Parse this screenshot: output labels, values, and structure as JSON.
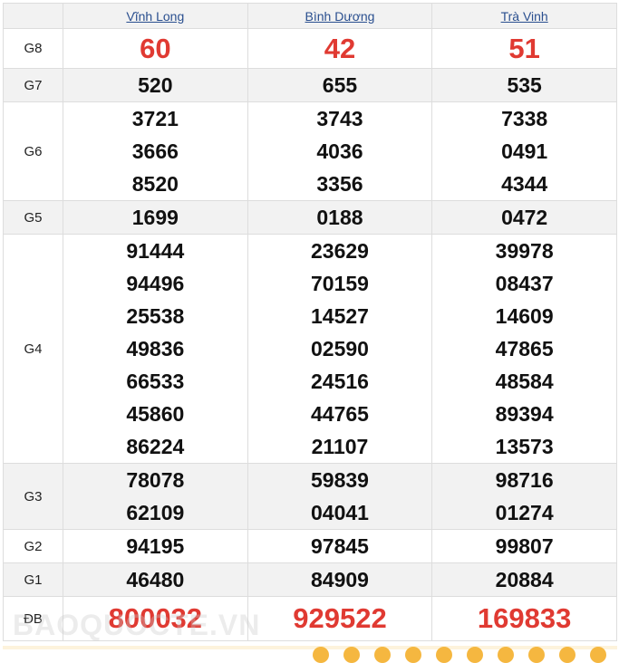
{
  "provinces": [
    "Vĩnh Long",
    "Bình Dương",
    "Trà Vinh"
  ],
  "rows": [
    {
      "label": "G8",
      "values": [
        [
          "60"
        ],
        [
          "42"
        ],
        [
          "51"
        ]
      ],
      "special": true
    },
    {
      "label": "G7",
      "values": [
        [
          "520"
        ],
        [
          "655"
        ],
        [
          "535"
        ]
      ]
    },
    {
      "label": "G6",
      "values": [
        [
          "3721",
          "3666",
          "8520"
        ],
        [
          "3743",
          "4036",
          "3356"
        ],
        [
          "7338",
          "0491",
          "4344"
        ]
      ]
    },
    {
      "label": "G5",
      "values": [
        [
          "1699"
        ],
        [
          "0188"
        ],
        [
          "0472"
        ]
      ]
    },
    {
      "label": "G4",
      "values": [
        [
          "91444",
          "94496",
          "25538",
          "49836",
          "66533",
          "45860",
          "86224"
        ],
        [
          "23629",
          "70159",
          "14527",
          "02590",
          "24516",
          "44765",
          "21107"
        ],
        [
          "39978",
          "08437",
          "14609",
          "47865",
          "48584",
          "89394",
          "13573"
        ]
      ]
    },
    {
      "label": "G3",
      "values": [
        [
          "78078",
          "62109"
        ],
        [
          "59839",
          "04041"
        ],
        [
          "98716",
          "01274"
        ]
      ]
    },
    {
      "label": "G2",
      "values": [
        [
          "94195"
        ],
        [
          "97845"
        ],
        [
          "99807"
        ]
      ]
    },
    {
      "label": "G1",
      "values": [
        [
          "46480"
        ],
        [
          "84909"
        ],
        [
          "20884"
        ]
      ]
    },
    {
      "label": "ĐB",
      "values": [
        [
          "800032"
        ],
        [
          "929522"
        ],
        [
          "169833"
        ]
      ],
      "jackpot": true
    }
  ],
  "watermark": "BAOQUOCTE.VN",
  "colors": {
    "prize_red": "#e03a32",
    "link": "#2a4f8f",
    "alt_row": "#f2f2f2"
  }
}
